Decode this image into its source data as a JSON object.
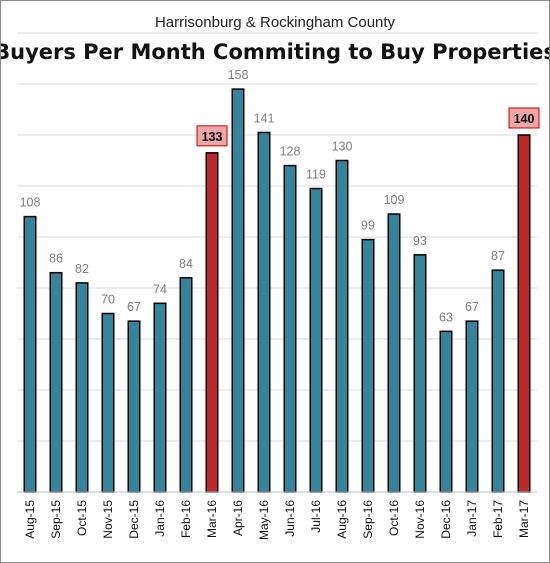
{
  "chart_data": {
    "type": "bar",
    "subtitle": "Harrisonburg & Rockingham County",
    "title": "Buyers Per Month Commiting to Buy Properties",
    "categories": [
      "Aug-15",
      "Sep-15",
      "Oct-15",
      "Nov-15",
      "Dec-15",
      "Jan-16",
      "Feb-16",
      "Mar-16",
      "Apr-16",
      "May-16",
      "Jun-16",
      "Jul-16",
      "Aug-16",
      "Sep-16",
      "Oct-16",
      "Nov-16",
      "Dec-16",
      "Jan-17",
      "Feb-17",
      "Mar-17"
    ],
    "values": [
      108,
      86,
      82,
      70,
      67,
      74,
      84,
      133,
      158,
      141,
      128,
      119,
      130,
      99,
      109,
      93,
      63,
      67,
      87,
      140
    ],
    "highlighted": [
      "Mar-16",
      "Mar-17"
    ],
    "ylim": [
      0,
      180
    ],
    "grid": true,
    "colors": {
      "bar": "#31859c",
      "highlight": "#c0282d",
      "label_box": "#f4a6a6",
      "label_box_border": "#c00000"
    }
  }
}
